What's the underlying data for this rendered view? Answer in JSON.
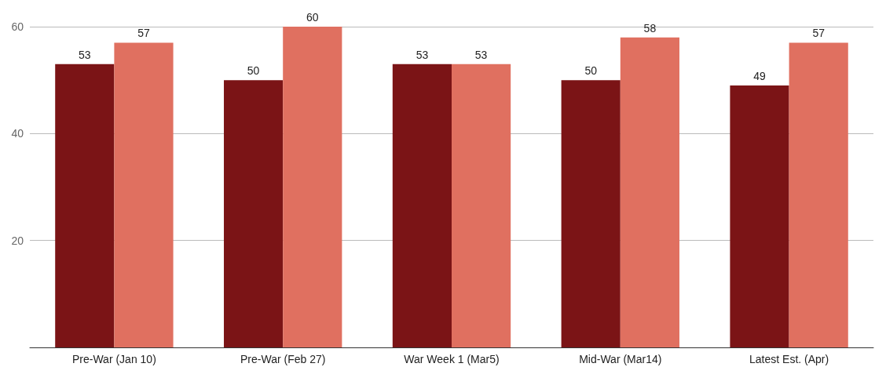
{
  "chart_data": {
    "type": "bar",
    "categories": [
      "Pre-War (Jan 10)",
      "Pre-War (Feb 27)",
      "War Week 1 (Mar5)",
      "Mid-War (Mar14)",
      "Latest Est. (Apr)"
    ],
    "series": [
      {
        "color": "#7b1416",
        "values": [
          53,
          50,
          53,
          50,
          49
        ]
      },
      {
        "color": "#e07060",
        "values": [
          57,
          60,
          53,
          58,
          57
        ]
      }
    ],
    "ylim": [
      0,
      60
    ],
    "yticks": [
      {
        "value": 0,
        "label": null
      },
      20,
      40,
      60
    ],
    "grid": "y",
    "data_labels": true
  }
}
